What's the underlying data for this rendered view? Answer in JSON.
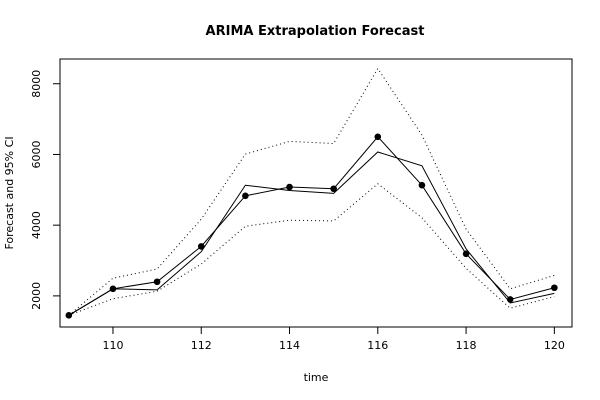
{
  "chart_data": {
    "type": "line",
    "title": "ARIMA Extrapolation Forecast",
    "xlabel": "time",
    "ylabel": "Forecast and 95% CI",
    "xlim": [
      108.8,
      120.4
    ],
    "ylim": [
      1120,
      8700
    ],
    "x_ticks": [
      110,
      112,
      114,
      116,
      118,
      120
    ],
    "y_ticks": [
      2000,
      4000,
      6000,
      8000
    ],
    "grid": false,
    "legend": "none",
    "x": [
      109,
      110,
      111,
      112,
      113,
      114,
      115,
      116,
      117,
      118,
      119,
      120
    ],
    "series": [
      {
        "role": "observed",
        "style": "line-with-points",
        "values": [
          1450,
          2200,
          2400,
          3400,
          4830,
          5080,
          5030,
          6500,
          5130,
          3190,
          1900,
          2230
        ]
      },
      {
        "role": "forecast",
        "style": "solid",
        "values": [
          1450,
          2200,
          2170,
          3250,
          5130,
          4980,
          4900,
          6070,
          5680,
          3330,
          1800,
          2070
        ]
      },
      {
        "role": "upper-95",
        "style": "dotted",
        "values": [
          1450,
          2500,
          2760,
          4170,
          6010,
          6370,
          6310,
          8430,
          6550,
          3890,
          2200,
          2580
        ]
      },
      {
        "role": "lower-95",
        "style": "dotted",
        "values": [
          1450,
          1920,
          2130,
          2900,
          3970,
          4140,
          4120,
          5170,
          4210,
          2780,
          1650,
          1980
        ]
      }
    ]
  }
}
